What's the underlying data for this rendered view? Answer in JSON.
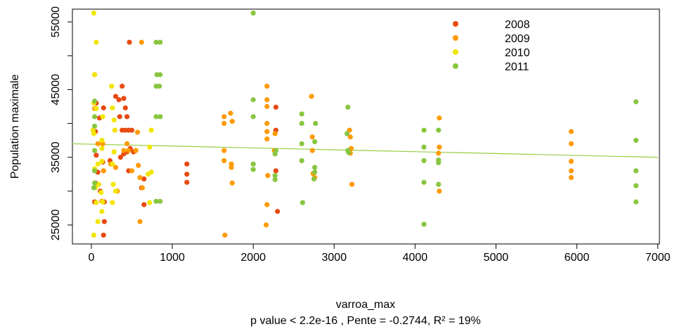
{
  "chart_data": {
    "type": "scatter",
    "xlabel": "varroa_max",
    "ylabel": "Population maximale",
    "caption": "p value < 2.2e-16 , Pente = -0.2744, R² = 19%",
    "xlim": [
      -250,
      7000
    ],
    "ylim": [
      22000,
      59000
    ],
    "xticks": [
      0,
      1000,
      2000,
      3000,
      4000,
      5000,
      6000,
      7000
    ],
    "yticks": [
      25000,
      35000,
      45000,
      55000
    ],
    "yticks_minor": [
      30000,
      40000,
      50000
    ],
    "legend_position": "top-right",
    "trendline": {
      "x": [
        -250,
        7000
      ],
      "y": [
        37000,
        35000
      ],
      "color": "#99cc44"
    },
    "series": [
      {
        "name": "2008",
        "color": "#e84a10",
        "points": [
          [
            40,
            47200
          ],
          [
            60,
            43000
          ],
          [
            100,
            40800
          ],
          [
            150,
            42300
          ],
          [
            50,
            38800
          ],
          [
            60,
            35300
          ],
          [
            80,
            32800
          ],
          [
            50,
            31200
          ],
          [
            40,
            28400
          ],
          [
            110,
            30000
          ],
          [
            140,
            34300
          ],
          [
            150,
            33000
          ],
          [
            160,
            28400
          ],
          [
            160,
            25500
          ],
          [
            150,
            23500
          ],
          [
            230,
            34500
          ],
          [
            300,
            44000
          ],
          [
            340,
            43500
          ],
          [
            380,
            45500
          ],
          [
            400,
            43700
          ],
          [
            420,
            42300
          ],
          [
            440,
            41000
          ],
          [
            350,
            41000
          ],
          [
            380,
            39000
          ],
          [
            420,
            39000
          ],
          [
            460,
            39000
          ],
          [
            500,
            39000
          ],
          [
            360,
            35000
          ],
          [
            400,
            35500
          ],
          [
            440,
            35800
          ],
          [
            480,
            36300
          ],
          [
            520,
            35800
          ],
          [
            460,
            33000
          ],
          [
            470,
            52000
          ],
          [
            650,
            31800
          ],
          [
            620,
            30500
          ],
          [
            650,
            28000
          ],
          [
            1180,
            34000
          ],
          [
            1180,
            32500
          ],
          [
            1180,
            31300
          ],
          [
            2280,
            42400
          ],
          [
            2280,
            39000
          ],
          [
            2280,
            33000
          ],
          [
            2300,
            27000
          ]
        ]
      },
      {
        "name": "2009",
        "color": "#ff9a00",
        "points": [
          [
            40,
            42200
          ],
          [
            80,
            37000
          ],
          [
            140,
            37000
          ],
          [
            150,
            33000
          ],
          [
            130,
            28500
          ],
          [
            240,
            34000
          ],
          [
            300,
            33500
          ],
          [
            320,
            30000
          ],
          [
            400,
            36000
          ],
          [
            440,
            37000
          ],
          [
            460,
            36000
          ],
          [
            500,
            33000
          ],
          [
            550,
            36000
          ],
          [
            570,
            38700
          ],
          [
            580,
            33800
          ],
          [
            600,
            32000
          ],
          [
            630,
            30500
          ],
          [
            600,
            25500
          ],
          [
            620,
            52000
          ],
          [
            1640,
            41000
          ],
          [
            1640,
            40000
          ],
          [
            1720,
            41500
          ],
          [
            1740,
            40300
          ],
          [
            1640,
            36000
          ],
          [
            1640,
            34500
          ],
          [
            1730,
            34000
          ],
          [
            1730,
            33500
          ],
          [
            1740,
            31200
          ],
          [
            1650,
            23500
          ],
          [
            2170,
            45500
          ],
          [
            2170,
            43500
          ],
          [
            2170,
            42500
          ],
          [
            2170,
            40000
          ],
          [
            2170,
            38800
          ],
          [
            2170,
            37700
          ],
          [
            2180,
            32300
          ],
          [
            2170,
            28000
          ],
          [
            2160,
            25000
          ],
          [
            2260,
            36000
          ],
          [
            2270,
            38500
          ],
          [
            2720,
            44000
          ],
          [
            2730,
            38000
          ],
          [
            2730,
            36000
          ],
          [
            2740,
            32600
          ],
          [
            2760,
            32000
          ],
          [
            3190,
            39000
          ],
          [
            3200,
            38000
          ],
          [
            3210,
            36300
          ],
          [
            3200,
            35600
          ],
          [
            3220,
            31000
          ],
          [
            4300,
            40800
          ],
          [
            4300,
            36500
          ],
          [
            4290,
            35600
          ],
          [
            4300,
            30000
          ],
          [
            5930,
            38800
          ],
          [
            5930,
            37000
          ],
          [
            5930,
            34400
          ],
          [
            5930,
            33000
          ],
          [
            5930,
            32000
          ]
        ]
      },
      {
        "name": "2010",
        "color": "#f2e600",
        "points": [
          [
            30,
            56300
          ],
          [
            60,
            52000
          ],
          [
            40,
            47200
          ],
          [
            30,
            43000
          ],
          [
            60,
            42200
          ],
          [
            20,
            39000
          ],
          [
            30,
            38500
          ],
          [
            80,
            34000
          ],
          [
            40,
            33300
          ],
          [
            50,
            30500
          ],
          [
            90,
            31000
          ],
          [
            60,
            28300
          ],
          [
            80,
            25500
          ],
          [
            30,
            23500
          ],
          [
            130,
            34400
          ],
          [
            130,
            36300
          ],
          [
            130,
            37500
          ],
          [
            140,
            41000
          ],
          [
            120,
            29800
          ],
          [
            130,
            27000
          ],
          [
            140,
            28400
          ],
          [
            250,
            45500
          ],
          [
            260,
            42300
          ],
          [
            280,
            40500
          ],
          [
            290,
            39000
          ],
          [
            260,
            34000
          ],
          [
            280,
            35800
          ],
          [
            270,
            31000
          ],
          [
            260,
            28300
          ],
          [
            300,
            30000
          ],
          [
            740,
            39000
          ],
          [
            720,
            36500
          ],
          [
            740,
            32800
          ],
          [
            700,
            32500
          ],
          [
            720,
            28300
          ]
        ]
      },
      {
        "name": "2011",
        "color": "#88c640",
        "points": [
          [
            40,
            43300
          ],
          [
            40,
            41000
          ],
          [
            40,
            39600
          ],
          [
            40,
            36000
          ],
          [
            40,
            33000
          ],
          [
            40,
            31200
          ],
          [
            30,
            30500
          ],
          [
            800,
            52000
          ],
          [
            850,
            52000
          ],
          [
            810,
            47200
          ],
          [
            850,
            47200
          ],
          [
            800,
            45500
          ],
          [
            840,
            45500
          ],
          [
            800,
            41000
          ],
          [
            850,
            41000
          ],
          [
            800,
            28500
          ],
          [
            850,
            28500
          ],
          [
            2000,
            56300
          ],
          [
            2000,
            43500
          ],
          [
            2000,
            41000
          ],
          [
            2000,
            34000
          ],
          [
            2000,
            33200
          ],
          [
            2280,
            36000
          ],
          [
            2270,
            35500
          ],
          [
            2270,
            32300
          ],
          [
            2270,
            31700
          ],
          [
            2600,
            41400
          ],
          [
            2600,
            40000
          ],
          [
            2600,
            37000
          ],
          [
            2600,
            34500
          ],
          [
            2610,
            28300
          ],
          [
            2770,
            40000
          ],
          [
            2760,
            37300
          ],
          [
            2760,
            33500
          ],
          [
            2760,
            32800
          ],
          [
            2750,
            31800
          ],
          [
            3170,
            42400
          ],
          [
            3160,
            38500
          ],
          [
            3170,
            36000
          ],
          [
            3180,
            35700
          ],
          [
            4110,
            39000
          ],
          [
            4110,
            36500
          ],
          [
            4110,
            34500
          ],
          [
            4110,
            31300
          ],
          [
            4110,
            25100
          ],
          [
            4290,
            39000
          ],
          [
            4290,
            34600
          ],
          [
            4290,
            34200
          ],
          [
            4290,
            31000
          ],
          [
            6730,
            43200
          ],
          [
            6730,
            37500
          ],
          [
            6730,
            33000
          ],
          [
            6730,
            30800
          ],
          [
            6730,
            28400
          ]
        ]
      }
    ]
  }
}
